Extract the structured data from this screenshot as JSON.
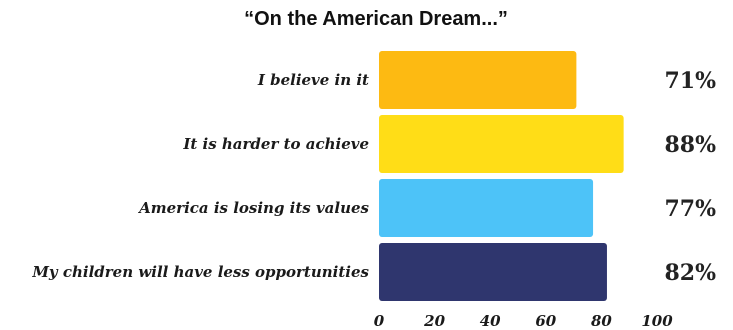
{
  "chart_data": {
    "type": "bar",
    "orientation": "horizontal",
    "title": "“On the American Dream...”",
    "categories": [
      "I believe in it",
      "It is harder to achieve",
      "America is losing its values",
      "My children will have less opportunities"
    ],
    "values": [
      71,
      88,
      77,
      82
    ],
    "value_labels": [
      "71%",
      "88%",
      "77%",
      "82%"
    ],
    "colors": [
      "#FDBA12",
      "#FFDD17",
      "#4DC3F8",
      "#2F366E"
    ],
    "xlim": [
      0,
      100
    ],
    "xticks": [
      0,
      20,
      40,
      60,
      80,
      100
    ],
    "grid": false,
    "legend": "none"
  }
}
